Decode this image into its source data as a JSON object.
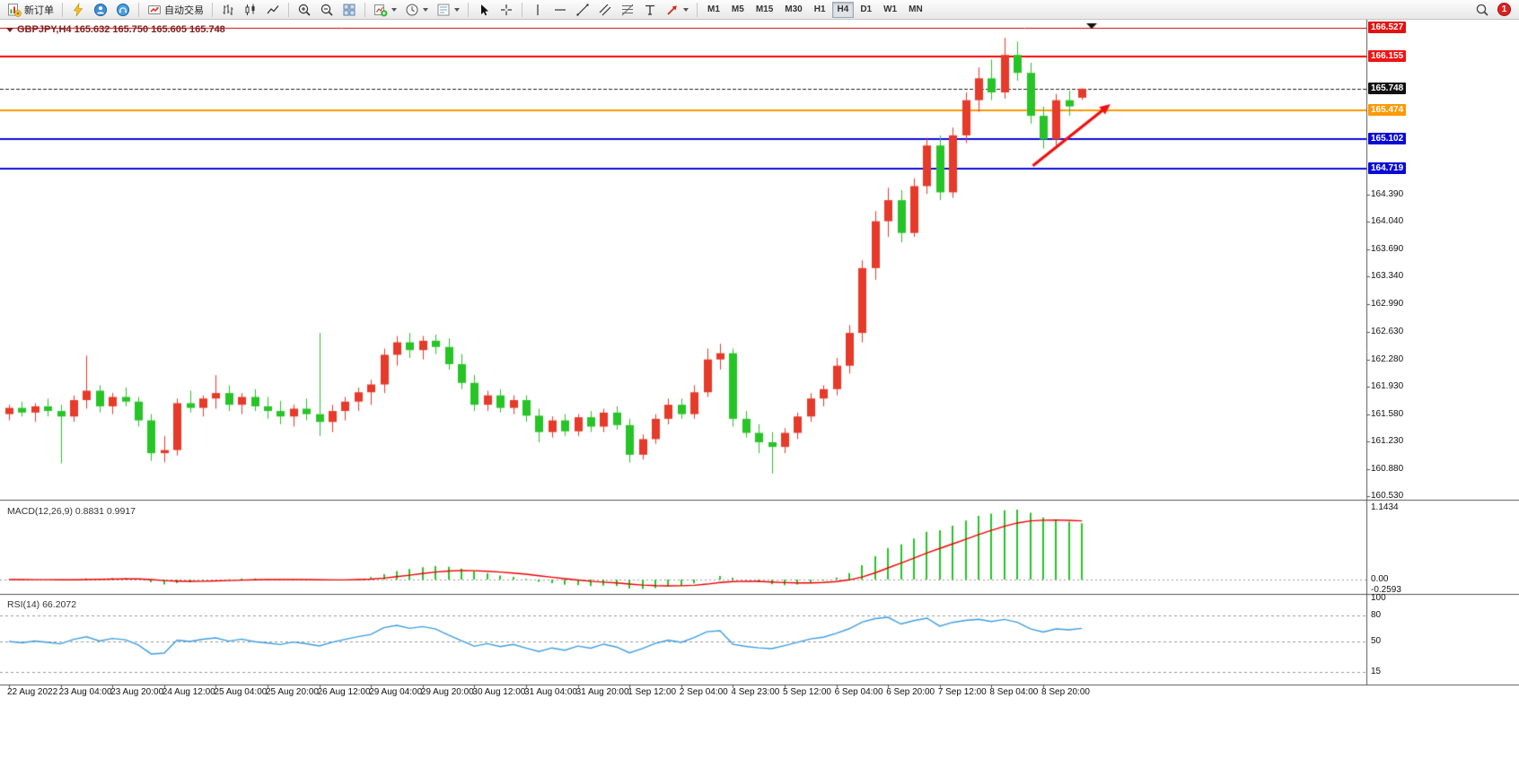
{
  "toolbar": {
    "groups": [
      {
        "items": [
          {
            "name": "new-order",
            "icon": "new-order",
            "label": "新订单"
          }
        ]
      },
      {
        "items": [
          {
            "name": "flash",
            "icon": "flash"
          },
          {
            "name": "profile",
            "icon": "profile"
          },
          {
            "name": "community",
            "icon": "community"
          }
        ]
      },
      {
        "items": [
          {
            "name": "auto-trading",
            "icon": "auto-trading",
            "label": "自动交易"
          }
        ]
      },
      {
        "items": [
          {
            "name": "bar-chart",
            "icon": "bar-chart"
          },
          {
            "name": "candlestick-chart",
            "icon": "candle-chart"
          },
          {
            "name": "line-chart",
            "icon": "line-chart"
          }
        ]
      },
      {
        "items": [
          {
            "name": "zoom-in",
            "icon": "zoom-in"
          },
          {
            "name": "zoom-out",
            "icon": "zoom-out"
          },
          {
            "name": "tile-windows",
            "icon": "tile"
          }
        ]
      },
      {
        "items": [
          {
            "name": "indicators",
            "icon": "indicators",
            "dropdown": true
          },
          {
            "name": "periods",
            "icon": "clock",
            "dropdown": true
          },
          {
            "name": "templates",
            "icon": "template",
            "dropdown": true
          }
        ]
      },
      {
        "items": [
          {
            "name": "cursor",
            "icon": "cursor"
          },
          {
            "name": "crosshair",
            "icon": "crosshair"
          }
        ]
      },
      {
        "items": [
          {
            "name": "vertical-line",
            "icon": "vline"
          },
          {
            "name": "horizontal-line",
            "icon": "hline"
          },
          {
            "name": "trendline",
            "icon": "trendline"
          },
          {
            "name": "equidistant-channel",
            "icon": "channel"
          },
          {
            "name": "fibonacci",
            "icon": "fibo"
          },
          {
            "name": "text-label",
            "icon": "text"
          },
          {
            "name": "arrows",
            "icon": "arrow",
            "dropdown": true
          }
        ]
      }
    ],
    "timeframes": [
      {
        "label": "M1"
      },
      {
        "label": "M5"
      },
      {
        "label": "M15"
      },
      {
        "label": "M30"
      },
      {
        "label": "H1"
      },
      {
        "label": "H4",
        "active": true
      },
      {
        "label": "D1"
      },
      {
        "label": "W1"
      },
      {
        "label": "MN"
      }
    ],
    "right": [
      {
        "name": "search",
        "icon": "search"
      },
      {
        "name": "notification",
        "icon": "badge",
        "badge": "1"
      }
    ]
  },
  "chart": {
    "title": "GBPJPY,H4  165.632 165.750 165.605 165.748",
    "symbol": "GBPJPY",
    "timeframe": "H4",
    "ohlc": {
      "open": "165.632",
      "high": "165.750",
      "low": "165.605",
      "close": "165.748"
    }
  },
  "indicators": {
    "macd": {
      "label": "MACD(12,26,9) 0.8831 0.9917",
      "scale_max": "1.1434",
      "scale_zero": "0.00",
      "scale_min": "-0.2593"
    },
    "rsi": {
      "label": "RSI(14) 66.2072",
      "scale_labels": [
        "100",
        "80",
        "50",
        "15"
      ],
      "level_lines": [
        80,
        50,
        15
      ]
    }
  },
  "chart_data": {
    "type": "candlestick",
    "symbol": "GBPJPY",
    "timeframe": "H4",
    "title": "GBPJPY,H4",
    "price_range": [
      160.53,
      166.527
    ],
    "candles": [
      [
        161.58,
        161.7,
        161.5,
        161.66
      ],
      [
        161.66,
        161.74,
        161.55,
        161.6
      ],
      [
        161.6,
        161.72,
        161.48,
        161.68
      ],
      [
        161.68,
        161.78,
        161.55,
        161.62
      ],
      [
        161.62,
        161.7,
        160.95,
        161.55
      ],
      [
        161.55,
        161.82,
        161.48,
        161.76
      ],
      [
        161.76,
        162.33,
        161.65,
        161.88
      ],
      [
        161.88,
        161.95,
        161.6,
        161.68
      ],
      [
        161.68,
        161.85,
        161.58,
        161.8
      ],
      [
        161.8,
        161.92,
        161.68,
        161.74
      ],
      [
        161.74,
        161.8,
        161.42,
        161.5
      ],
      [
        161.5,
        161.58,
        160.98,
        161.08
      ],
      [
        161.08,
        161.3,
        160.96,
        161.12
      ],
      [
        161.12,
        161.78,
        161.05,
        161.72
      ],
      [
        161.72,
        161.88,
        161.6,
        161.66
      ],
      [
        161.66,
        161.82,
        161.55,
        161.78
      ],
      [
        161.78,
        162.08,
        161.65,
        161.85
      ],
      [
        161.85,
        161.95,
        161.62,
        161.7
      ],
      [
        161.7,
        161.85,
        161.58,
        161.8
      ],
      [
        161.8,
        161.9,
        161.62,
        161.68
      ],
      [
        161.68,
        161.8,
        161.52,
        161.62
      ],
      [
        161.62,
        161.75,
        161.45,
        161.55
      ],
      [
        161.55,
        161.7,
        161.42,
        161.65
      ],
      [
        161.65,
        161.78,
        161.5,
        161.58
      ],
      [
        161.58,
        162.62,
        161.3,
        161.48
      ],
      [
        161.48,
        161.7,
        161.35,
        161.62
      ],
      [
        161.62,
        161.8,
        161.5,
        161.74
      ],
      [
        161.74,
        161.92,
        161.62,
        161.86
      ],
      [
        161.86,
        162.02,
        161.7,
        161.96
      ],
      [
        161.96,
        162.42,
        161.85,
        162.34
      ],
      [
        162.34,
        162.58,
        162.2,
        162.5
      ],
      [
        162.5,
        162.62,
        162.3,
        162.4
      ],
      [
        162.4,
        162.58,
        162.28,
        162.52
      ],
      [
        162.52,
        162.6,
        162.35,
        162.44
      ],
      [
        162.44,
        162.55,
        162.15,
        162.22
      ],
      [
        162.22,
        162.35,
        161.9,
        161.98
      ],
      [
        161.98,
        162.08,
        161.62,
        161.7
      ],
      [
        161.7,
        161.88,
        161.62,
        161.82
      ],
      [
        161.82,
        161.9,
        161.6,
        161.66
      ],
      [
        161.66,
        161.82,
        161.58,
        161.76
      ],
      [
        161.76,
        161.82,
        161.48,
        161.56
      ],
      [
        161.56,
        161.65,
        161.22,
        161.35
      ],
      [
        161.35,
        161.55,
        161.28,
        161.5
      ],
      [
        161.5,
        161.58,
        161.3,
        161.36
      ],
      [
        161.36,
        161.58,
        161.3,
        161.54
      ],
      [
        161.54,
        161.62,
        161.35,
        161.42
      ],
      [
        161.42,
        161.65,
        161.35,
        161.6
      ],
      [
        161.6,
        161.68,
        161.38,
        161.44
      ],
      [
        161.44,
        161.52,
        160.96,
        161.06
      ],
      [
        161.06,
        161.32,
        161.0,
        161.26
      ],
      [
        161.26,
        161.58,
        161.2,
        161.52
      ],
      [
        161.52,
        161.78,
        161.45,
        161.7
      ],
      [
        161.7,
        161.78,
        161.52,
        161.58
      ],
      [
        161.58,
        161.95,
        161.52,
        161.86
      ],
      [
        161.86,
        162.42,
        161.8,
        162.28
      ],
      [
        162.28,
        162.48,
        162.15,
        162.36
      ],
      [
        162.36,
        162.42,
        161.42,
        161.52
      ],
      [
        161.52,
        161.62,
        161.28,
        161.34
      ],
      [
        161.34,
        161.45,
        161.08,
        161.22
      ],
      [
        161.22,
        161.35,
        160.82,
        161.16
      ],
      [
        161.16,
        161.4,
        161.08,
        161.34
      ],
      [
        161.34,
        161.6,
        161.26,
        161.55
      ],
      [
        161.55,
        161.85,
        161.48,
        161.78
      ],
      [
        161.78,
        161.95,
        161.68,
        161.9
      ],
      [
        161.9,
        162.3,
        161.82,
        162.2
      ],
      [
        162.2,
        162.72,
        162.1,
        162.62
      ],
      [
        162.62,
        163.55,
        162.5,
        163.45
      ],
      [
        163.45,
        164.18,
        163.3,
        164.05
      ],
      [
        164.05,
        164.48,
        163.85,
        164.32
      ],
      [
        164.32,
        164.45,
        163.78,
        163.9
      ],
      [
        163.9,
        164.6,
        163.85,
        164.5
      ],
      [
        164.5,
        165.12,
        164.4,
        165.02
      ],
      [
        165.02,
        165.15,
        164.32,
        164.42
      ],
      [
        164.42,
        165.25,
        164.35,
        165.15
      ],
      [
        165.15,
        165.7,
        165.05,
        165.6
      ],
      [
        165.6,
        166.02,
        165.45,
        165.88
      ],
      [
        165.88,
        166.12,
        165.6,
        165.7
      ],
      [
        165.7,
        166.4,
        165.62,
        166.18
      ],
      [
        166.18,
        166.35,
        165.85,
        165.95
      ],
      [
        165.95,
        166.08,
        165.3,
        165.4
      ],
      [
        165.4,
        165.52,
        164.98,
        165.1
      ],
      [
        165.1,
        165.68,
        165.02,
        165.6
      ],
      [
        165.6,
        165.72,
        165.4,
        165.52
      ],
      [
        165.632,
        165.75,
        165.605,
        165.748
      ]
    ],
    "time_labels": [
      "22 Aug 2022",
      "23 Aug 04:00",
      "23 Aug 20:00",
      "24 Aug 12:00",
      "25 Aug 04:00",
      "25 Aug 20:00",
      "26 Aug 12:00",
      "29 Aug 04:00",
      "29 Aug 20:00",
      "30 Aug 12:00",
      "31 Aug 04:00",
      "31 Aug 20:00",
      "1 Sep 12:00",
      "2 Sep 04:00",
      "4 Sep 23:00",
      "5 Sep 12:00",
      "6 Sep 04:00",
      "6 Sep 20:00",
      "7 Sep 12:00",
      "8 Sep 04:00",
      "8 Sep 20:00"
    ],
    "price_axis": {
      "ticks": [
        "164.390",
        "164.040",
        "163.690",
        "163.340",
        "162.990",
        "162.630",
        "162.280",
        "161.930",
        "161.580",
        "161.230",
        "160.880",
        "160.530"
      ],
      "badges": [
        {
          "value": "166.527",
          "bg": "#e31212"
        },
        {
          "value": "166.155",
          "bg": "#f01414"
        },
        {
          "value": "165.748",
          "bg": "#111111"
        },
        {
          "value": "165.474",
          "bg": "#ff9900"
        },
        {
          "value": "165.102",
          "bg": "#0b0bd6"
        },
        {
          "value": "164.719",
          "bg": "#0b0bd6"
        }
      ]
    },
    "levels": [
      {
        "price": 166.527,
        "color": "#cc0000",
        "width": 1
      },
      {
        "price": 166.155,
        "color": "#ff0000",
        "width": 2
      },
      {
        "price": 165.474,
        "color": "#ff9900",
        "width": 2
      },
      {
        "price": 165.102,
        "color": "#0b0bdc",
        "width": 2
      },
      {
        "price": 164.719,
        "color": "#0b0bdc",
        "width": 2
      }
    ],
    "current_price": {
      "value": 165.748,
      "color": "#222222"
    },
    "colors": {
      "up": "#e63a2a",
      "down": "#27c427",
      "macd_hist": "#27c427",
      "macd_signal": "#f00000",
      "rsi_line": "#3e9ee0",
      "panel_border": "#555555"
    },
    "annotations": [
      {
        "type": "arrow",
        "from": {
          "bar": 79.2,
          "price": 164.76
        },
        "to": {
          "bar": 85.2,
          "price": 165.55
        },
        "color": "#ee1111"
      }
    ]
  }
}
